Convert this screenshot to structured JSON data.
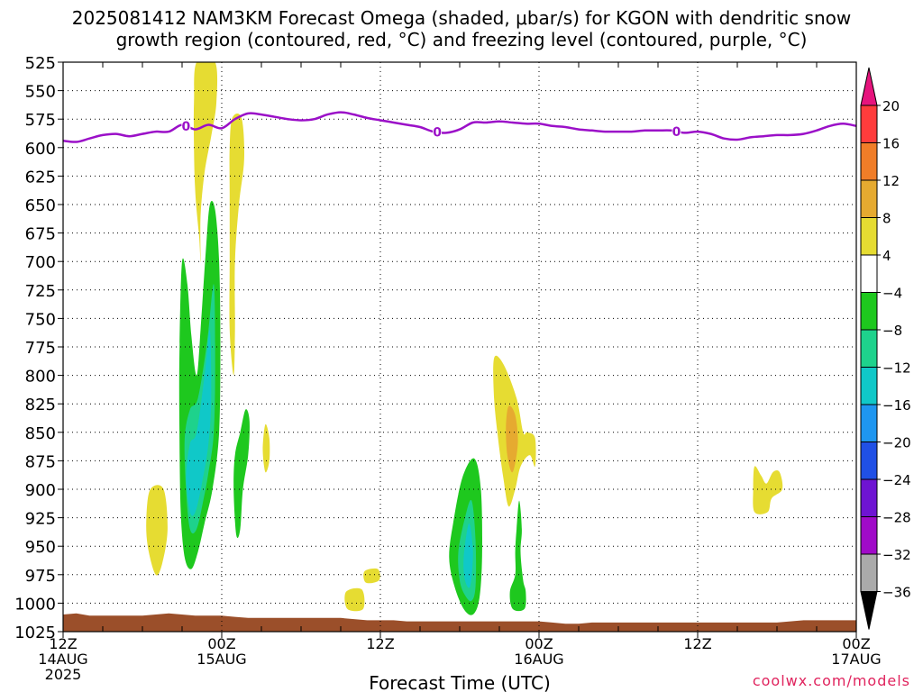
{
  "title_line1": "2025081412 NAM3KM Forecast Omega (shaded, μbar/s) for KGON with dendritic snow",
  "title_line2": "growth region (contoured, red, °C) and freezing level (contoured, purple, °C)",
  "credit": "coolwx.com/models",
  "chart_data": {
    "type": "heatmap",
    "title": "2025081412 NAM3KM Forecast Omega (shaded, μbar/s) for KGON with dendritic snow growth region (contoured, red, °C) and freezing level (contoured, purple, °C)",
    "xlabel": "Forecast Time (UTC)",
    "ylabel": "",
    "x_unit": "forecast hour",
    "xlim": [
      0,
      60
    ],
    "ylim": [
      1025,
      525
    ],
    "y_ticks": [
      525,
      550,
      575,
      600,
      625,
      650,
      675,
      700,
      725,
      750,
      775,
      800,
      825,
      850,
      875,
      900,
      925,
      950,
      975,
      1000,
      1025
    ],
    "x_ticks": [
      {
        "hour": 0,
        "labels": [
          "12Z",
          "14AUG",
          "2025"
        ]
      },
      {
        "hour": 12,
        "labels": [
          "00Z",
          "15AUG"
        ]
      },
      {
        "hour": 24,
        "labels": [
          "12Z"
        ]
      },
      {
        "hour": 36,
        "labels": [
          "00Z",
          "16AUG"
        ]
      },
      {
        "hour": 48,
        "labels": [
          "12Z"
        ]
      },
      {
        "hour": 60,
        "labels": [
          "00Z",
          "17AUG"
        ]
      }
    ],
    "grid": true,
    "colorbar": {
      "unit": "μbar/s",
      "tick_labels": [
        "20",
        "16",
        "12",
        "8",
        "4",
        "−4",
        "−8",
        "−12",
        "−16",
        "−20",
        "−24",
        "−28",
        "−32",
        "−36"
      ],
      "bins": [
        {
          "from": 16,
          "to": 20,
          "color": "#ff3c3c"
        },
        {
          "from": 12,
          "to": 16,
          "color": "#f07d28"
        },
        {
          "from": 8,
          "to": 12,
          "color": "#e6aa30"
        },
        {
          "from": 4,
          "to": 8,
          "color": "#e6dc32"
        },
        {
          "from": -4,
          "to": 4,
          "color": "#ffffff"
        },
        {
          "from": -8,
          "to": -4,
          "color": "#1ec81e"
        },
        {
          "from": -12,
          "to": -8,
          "color": "#1ed28c"
        },
        {
          "from": -16,
          "to": -12,
          "color": "#10c8c8"
        },
        {
          "from": -20,
          "to": -16,
          "color": "#1e96f0"
        },
        {
          "from": -24,
          "to": -20,
          "color": "#2050e6"
        },
        {
          "from": -28,
          "to": -24,
          "color": "#6e14d2"
        },
        {
          "from": -32,
          "to": -28,
          "color": "#a00ac8"
        },
        {
          "from": -36,
          "to": -32,
          "color": "#aaaaaa"
        }
      ],
      "top_arrow_color": "#e6147d",
      "bottom_arrow_color": "#000000"
    },
    "freezing_level": {
      "label": "0",
      "color": "#9b10c8",
      "label_hours": [
        9.3,
        28.3,
        46.4
      ],
      "hours": [
        0,
        1,
        2,
        3,
        4,
        5,
        6,
        7,
        8,
        9,
        10,
        11,
        12,
        13,
        14,
        15,
        16,
        17,
        18,
        19,
        20,
        21,
        22,
        23,
        24,
        25,
        26,
        27,
        28,
        29,
        30,
        31,
        32,
        33,
        34,
        35,
        36,
        37,
        38,
        39,
        40,
        41,
        42,
        43,
        44,
        45,
        46,
        47,
        48,
        49,
        50,
        51,
        52,
        53,
        54,
        55,
        56,
        57,
        58,
        59,
        60
      ],
      "pressure": [
        594,
        595,
        592,
        589,
        588,
        590,
        588,
        586,
        586,
        580,
        584,
        580,
        583,
        575,
        570,
        571,
        573,
        575,
        576,
        575,
        571,
        569,
        571,
        574,
        576,
        578,
        580,
        582,
        586,
        587,
        584,
        578,
        578,
        577,
        578,
        579,
        579,
        581,
        582,
        584,
        585,
        586,
        586,
        586,
        585,
        585,
        585,
        587,
        586,
        588,
        592,
        593,
        591,
        590,
        589,
        589,
        588,
        585,
        581,
        579,
        581
      ]
    },
    "omega_regions": [
      {
        "value_range": [
          4,
          8
        ],
        "points": [
          [
            10.1,
            525
          ],
          [
            11.5,
            525
          ],
          [
            11.6,
            560
          ],
          [
            11.2,
            590
          ],
          [
            10.7,
            622
          ],
          [
            10.4,
            660
          ],
          [
            10.4,
            700
          ],
          [
            10.3,
            680
          ],
          [
            10.0,
            640
          ],
          [
            9.9,
            600
          ],
          [
            9.9,
            560
          ]
        ]
      },
      {
        "value_range": [
          4,
          8
        ],
        "points": [
          [
            12.8,
            574
          ],
          [
            13.5,
            574
          ],
          [
            13.7,
            610
          ],
          [
            13.3,
            650
          ],
          [
            13.0,
            700
          ],
          [
            13.0,
            760
          ],
          [
            12.9,
            800
          ],
          [
            12.6,
            760
          ],
          [
            12.6,
            700
          ],
          [
            12.6,
            640
          ],
          [
            12.6,
            600
          ]
        ]
      },
      {
        "value_range": [
          4,
          8
        ],
        "points": [
          [
            6.6,
            900
          ],
          [
            7.6,
            900
          ],
          [
            7.9,
            935
          ],
          [
            7.5,
            965
          ],
          [
            7.0,
            975
          ],
          [
            6.4,
            950
          ],
          [
            6.3,
            925
          ]
        ]
      },
      {
        "value_range": [
          4,
          8
        ],
        "points": [
          [
            15.3,
            843
          ],
          [
            15.6,
            855
          ],
          [
            15.6,
            875
          ],
          [
            15.3,
            885
          ],
          [
            15.1,
            865
          ]
        ]
      },
      {
        "value_range": [
          4,
          8
        ],
        "points": [
          [
            21.4,
            990
          ],
          [
            22.6,
            988
          ],
          [
            22.7,
            1005
          ],
          [
            21.5,
            1005
          ]
        ]
      },
      {
        "value_range": [
          4,
          8
        ],
        "points": [
          [
            22.8,
            972
          ],
          [
            23.8,
            970
          ],
          [
            23.9,
            980
          ],
          [
            22.9,
            982
          ]
        ]
      },
      {
        "value_range": [
          4,
          8
        ],
        "points": [
          [
            32.6,
            785
          ],
          [
            33.3,
            790
          ],
          [
            34.3,
            820
          ],
          [
            34.8,
            850
          ],
          [
            35.1,
            850
          ],
          [
            35.7,
            855
          ],
          [
            35.7,
            880
          ],
          [
            35.3,
            870
          ],
          [
            34.6,
            880
          ],
          [
            34.2,
            900
          ],
          [
            33.7,
            915
          ],
          [
            33.3,
            890
          ],
          [
            32.9,
            855
          ],
          [
            32.6,
            820
          ]
        ]
      },
      {
        "value_range": [
          8,
          12
        ],
        "points": [
          [
            33.7,
            827
          ],
          [
            34.2,
            835
          ],
          [
            34.4,
            860
          ],
          [
            34.0,
            885
          ],
          [
            33.6,
            870
          ],
          [
            33.5,
            845
          ]
        ]
      },
      {
        "value_range": [
          4,
          8
        ],
        "points": [
          [
            52.3,
            880
          ],
          [
            52.8,
            888
          ],
          [
            53.2,
            895
          ],
          [
            53.7,
            885
          ],
          [
            54.2,
            885
          ],
          [
            54.4,
            900
          ],
          [
            53.6,
            908
          ],
          [
            53.3,
            920
          ],
          [
            52.3,
            920
          ],
          [
            52.2,
            900
          ]
        ]
      },
      {
        "value_range": [
          -8,
          -4
        ],
        "points": [
          [
            9.0,
            700
          ],
          [
            9.4,
            720
          ],
          [
            9.7,
            765
          ],
          [
            10.1,
            800
          ],
          [
            10.4,
            760
          ],
          [
            10.8,
            690
          ],
          [
            11.1,
            650
          ],
          [
            11.5,
            655
          ],
          [
            11.8,
            700
          ],
          [
            11.9,
            770
          ],
          [
            11.8,
            850
          ],
          [
            11.3,
            900
          ],
          [
            10.7,
            930
          ],
          [
            10.2,
            955
          ],
          [
            9.7,
            970
          ],
          [
            9.2,
            960
          ],
          [
            8.9,
            920
          ],
          [
            8.8,
            850
          ],
          [
            8.8,
            780
          ]
        ]
      },
      {
        "value_range": [
          -12,
          -8
        ],
        "points": [
          [
            9.2,
            855
          ],
          [
            9.6,
            830
          ],
          [
            10.2,
            820
          ],
          [
            10.9,
            770
          ],
          [
            11.4,
            720
          ],
          [
            11.5,
            790
          ],
          [
            11.4,
            850
          ],
          [
            11.0,
            885
          ],
          [
            10.6,
            910
          ],
          [
            10.1,
            935
          ],
          [
            9.6,
            935
          ],
          [
            9.3,
            900
          ]
        ]
      },
      {
        "value_range": [
          -16,
          -12
        ],
        "points": [
          [
            9.3,
            890
          ],
          [
            9.6,
            860
          ],
          [
            10.1,
            850
          ],
          [
            10.7,
            800
          ],
          [
            11.1,
            760
          ],
          [
            11.2,
            820
          ],
          [
            11.0,
            860
          ],
          [
            10.5,
            895
          ],
          [
            10.0,
            920
          ],
          [
            9.6,
            920
          ]
        ]
      },
      {
        "value_range": [
          -8,
          -4
        ],
        "points": [
          [
            13.4,
            850
          ],
          [
            13.8,
            830
          ],
          [
            14.1,
            840
          ],
          [
            14.0,
            870
          ],
          [
            13.6,
            900
          ],
          [
            13.4,
            935
          ],
          [
            13.1,
            940
          ],
          [
            12.9,
            900
          ],
          [
            13.0,
            870
          ]
        ]
      },
      {
        "value_range": [
          -8,
          -4
        ],
        "points": [
          [
            29.5,
            930
          ],
          [
            30.2,
            890
          ],
          [
            31.1,
            873
          ],
          [
            31.6,
            900
          ],
          [
            31.7,
            955
          ],
          [
            31.5,
            995
          ],
          [
            31.0,
            1010
          ],
          [
            30.3,
            1005
          ],
          [
            29.6,
            985
          ],
          [
            29.2,
            960
          ]
        ]
      },
      {
        "value_range": [
          -12,
          -8
        ],
        "points": [
          [
            29.9,
            955
          ],
          [
            30.4,
            925
          ],
          [
            30.9,
            910
          ],
          [
            31.2,
            945
          ],
          [
            31.2,
            985
          ],
          [
            30.9,
            998
          ],
          [
            30.4,
            993
          ],
          [
            30.0,
            980
          ]
        ]
      },
      {
        "value_range": [
          -16,
          -12
        ],
        "points": [
          [
            30.3,
            960
          ],
          [
            30.7,
            930
          ],
          [
            31.0,
            955
          ],
          [
            30.8,
            985
          ],
          [
            30.4,
            980
          ]
        ]
      },
      {
        "value_range": [
          -8,
          -4
        ],
        "points": [
          [
            34.3,
            935
          ],
          [
            34.5,
            910
          ],
          [
            34.7,
            935
          ],
          [
            34.6,
            955
          ],
          [
            34.8,
            980
          ],
          [
            35.0,
            990
          ],
          [
            34.9,
            1005
          ],
          [
            34.0,
            1005
          ],
          [
            33.8,
            990
          ],
          [
            34.2,
            975
          ],
          [
            34.2,
            955
          ]
        ]
      }
    ],
    "terrain": {
      "color": "#9b4f2a",
      "hours": [
        0,
        1,
        2,
        3,
        4,
        5,
        6,
        7,
        8,
        9,
        10,
        11,
        12,
        13,
        14,
        15,
        16,
        17,
        18,
        19,
        20,
        21,
        22,
        23,
        24,
        25,
        26,
        27,
        28,
        29,
        30,
        31,
        32,
        33,
        34,
        35,
        36,
        37,
        38,
        39,
        40,
        41,
        42,
        43,
        44,
        45,
        46,
        47,
        48,
        49,
        50,
        51,
        52,
        53,
        54,
        55,
        56,
        57,
        58,
        59,
        60
      ],
      "surface": [
        1010,
        1009,
        1011,
        1011,
        1011,
        1011,
        1011,
        1010,
        1009,
        1010,
        1011,
        1011,
        1011,
        1012,
        1013,
        1013,
        1013,
        1013,
        1013,
        1013,
        1013,
        1013,
        1014,
        1015,
        1015,
        1015,
        1016,
        1016,
        1016,
        1016,
        1016,
        1016,
        1016,
        1016,
        1016,
        1016,
        1016,
        1017,
        1018,
        1018,
        1017,
        1017,
        1017,
        1017,
        1017,
        1017,
        1017,
        1017,
        1017,
        1017,
        1017,
        1017,
        1017,
        1017,
        1017,
        1016,
        1015,
        1015,
        1015,
        1015,
        1015
      ]
    }
  }
}
